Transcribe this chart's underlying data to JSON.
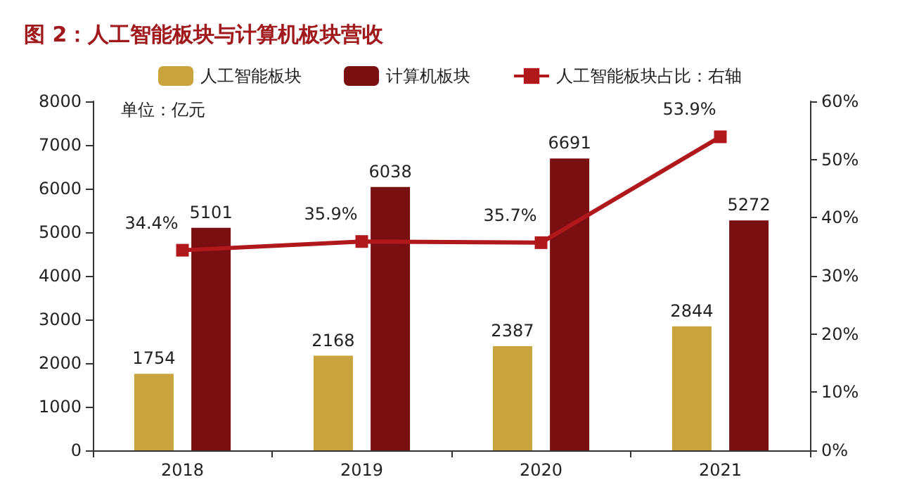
{
  "chart_data": {
    "type": "bar",
    "title": "图 2：人工智能板块与计算机板块营收",
    "annotations": [
      "单位：亿元"
    ],
    "categories": [
      "2018",
      "2019",
      "2020",
      "2021"
    ],
    "series": [
      {
        "name": "人工智能板块",
        "color": "#c9a43e",
        "values": [
          1754,
          2168,
          2387,
          2844
        ]
      },
      {
        "name": "计算机板块",
        "color": "#7a0f12",
        "values": [
          5101,
          6038,
          6691,
          5272
        ]
      },
      {
        "name": "人工智能板块占比：右轴",
        "type": "line",
        "axis": "y2",
        "color": "#b0181c",
        "values": [
          34.4,
          35.9,
          35.7,
          53.9
        ],
        "value_labels": [
          "34.4%",
          "35.9%",
          "35.7%",
          "53.9%"
        ]
      }
    ],
    "ylim": [
      0,
      8000
    ],
    "yticks": [
      0,
      1000,
      2000,
      3000,
      4000,
      5000,
      6000,
      7000,
      8000
    ],
    "y2lim": [
      0,
      60
    ],
    "y2ticks": [
      {
        "value": 0,
        "label": "0%"
      },
      {
        "value": 10,
        "label": "10%"
      },
      {
        "value": 20,
        "label": "20%"
      },
      {
        "value": 30,
        "label": "30%"
      },
      {
        "value": 40,
        "label": "40%"
      },
      {
        "value": 50,
        "label": "50%"
      },
      {
        "value": 60,
        "label": "60%"
      }
    ],
    "data_labels": true,
    "grid": false,
    "legend": "top",
    "marker": "square",
    "line_style": "solid"
  }
}
